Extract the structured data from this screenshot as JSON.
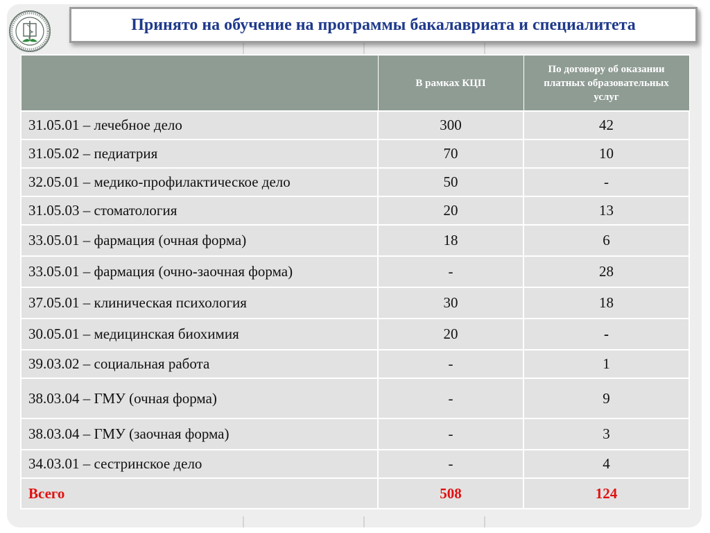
{
  "title": "Принято на обучение на программы бакалавриата и специалитета",
  "logo": {
    "icon": "university-seal-icon",
    "colors": {
      "ring": "#5d6d63",
      "leaf": "#2e8b3e"
    }
  },
  "table": {
    "headers": [
      "",
      "В рамках КЦП",
      "По договору об оказании платных образовательных услуг"
    ],
    "rows": [
      [
        "31.05.01 – лечебное дело",
        "300",
        "42"
      ],
      [
        "31.05.02 – педиатрия",
        "70",
        "10"
      ],
      [
        "32.05.01 – медико-профилактическое дело",
        "50",
        "-"
      ],
      [
        "31.05.03 – стоматология",
        "20",
        "13"
      ],
      [
        "33.05.01 – фармация (очная форма)",
        "18",
        "6"
      ],
      [
        "33.05.01 – фармация (очно-заочная форма)",
        "-",
        "28"
      ],
      [
        "37.05.01 – клиническая психология",
        "30",
        "18"
      ],
      [
        "30.05.01 – медицинская биохимия",
        "20",
        "-"
      ],
      [
        "39.03.02 – социальная работа",
        "-",
        "1"
      ],
      [
        "38.03.04 – ГМУ (очная форма)",
        "-",
        "9"
      ],
      [
        "38.03.04 – ГМУ (заочная форма)",
        "-",
        "3"
      ],
      [
        "34.03.01 – сестринское дело",
        "-",
        "4"
      ]
    ],
    "total": [
      "Всего",
      "508",
      "124"
    ]
  },
  "colors": {
    "title": "#1f3a8c",
    "header_bg": "#8f9c94",
    "cell_bg": "#e2e2e2",
    "total": "#e01010"
  }
}
